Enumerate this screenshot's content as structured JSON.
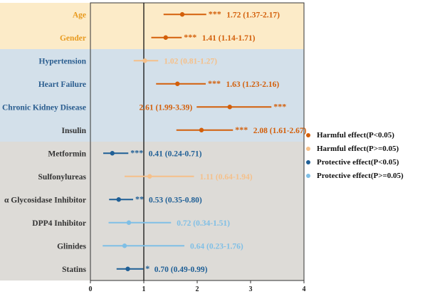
{
  "chart_data": {
    "type": "forest",
    "xlim": [
      0,
      4
    ],
    "x_ticks": [
      "0",
      "1",
      "2",
      "3",
      "4"
    ],
    "reference_line": 1,
    "bands": [
      {
        "rows": [
          0,
          1
        ],
        "color": "#fcebc8"
      },
      {
        "rows": [
          2,
          3,
          4,
          5
        ],
        "color": "#d3e0ea"
      },
      {
        "rows": [
          6,
          7,
          8,
          9,
          10,
          11
        ],
        "color": "#dddbd7"
      }
    ],
    "label_colors": {
      "Age": "#e89a1e",
      "Gender": "#e89a1e",
      "Hypertension": "#2a5d8f",
      "Heart Failure": "#2a5d8f",
      "Chronic Kidney Disease": "#2a5d8f",
      "Insulin": "#333333",
      "Metformin": "#333333",
      "Sulfonylureas": "#333333",
      "α Glycosidase Inhibitor": "#333333",
      "DPP4 Inhibitor": "#333333",
      "Glinides": "#333333",
      "Statins": "#333333"
    },
    "categories": [
      "Age",
      "Gender",
      "Hypertension",
      "Heart Failure",
      "Chronic Kidney Disease",
      "Insulin",
      "Metformin",
      "Sulfonylureas",
      "α Glycosidase Inhibitor",
      "DPP4 Inhibitor",
      "Glinides",
      "Statins"
    ],
    "rows": [
      {
        "label": "Age",
        "est": 1.72,
        "lo": 1.37,
        "hi": 2.17,
        "text": "1.72 (1.37-2.17)",
        "sig": "***",
        "group": "harmful_sig",
        "text_side": "right"
      },
      {
        "label": "Gender",
        "est": 1.41,
        "lo": 1.14,
        "hi": 1.71,
        "text": "1.41 (1.14-1.71)",
        "sig": "***",
        "group": "harmful_sig",
        "text_side": "right"
      },
      {
        "label": "Hypertension",
        "est": 1.02,
        "lo": 0.81,
        "hi": 1.27,
        "text": "1.02 (0.81-1.27)",
        "sig": "",
        "group": "harmful_ns",
        "text_side": "right"
      },
      {
        "label": "Heart Failure",
        "est": 1.63,
        "lo": 1.23,
        "hi": 2.16,
        "text": "1.63 (1.23-2.16)",
        "sig": "***",
        "group": "harmful_sig",
        "text_side": "right"
      },
      {
        "label": "Chronic Kidney Disease",
        "est": 2.61,
        "lo": 1.99,
        "hi": 3.39,
        "text": "2.61 (1.99-3.39)",
        "sig": "***",
        "group": "harmful_sig",
        "text_side": "left"
      },
      {
        "label": "Insulin",
        "est": 2.08,
        "lo": 1.61,
        "hi": 2.67,
        "text": "2.08 (1.61-2.67)",
        "sig": "***",
        "group": "harmful_sig",
        "text_side": "right"
      },
      {
        "label": "Metformin",
        "est": 0.41,
        "lo": 0.24,
        "hi": 0.71,
        "text": "0.41 (0.24-0.71)",
        "sig": "***",
        "group": "protective_sig",
        "text_side": "right"
      },
      {
        "label": "Sulfonylureas",
        "est": 1.11,
        "lo": 0.64,
        "hi": 1.94,
        "text": "1.11 (0.64-1.94)",
        "sig": "",
        "group": "harmful_ns",
        "text_side": "right"
      },
      {
        "label": "α Glycosidase Inhibitor",
        "est": 0.53,
        "lo": 0.35,
        "hi": 0.8,
        "text": "0.53 (0.35-0.80)",
        "sig": "**",
        "group": "protective_sig",
        "text_side": "right"
      },
      {
        "label": "DPP4 Inhibitor",
        "est": 0.72,
        "lo": 0.34,
        "hi": 1.51,
        "text": "0.72 (0.34-1.51)",
        "sig": "",
        "group": "protective_ns",
        "text_side": "right"
      },
      {
        "label": "Glinides",
        "est": 0.64,
        "lo": 0.23,
        "hi": 1.76,
        "text": "0.64 (0.23-1.76)",
        "sig": "",
        "group": "protective_ns",
        "text_side": "right"
      },
      {
        "label": "Statins",
        "est": 0.7,
        "lo": 0.49,
        "hi": 0.99,
        "text": "0.70 (0.49-0.99)",
        "sig": "*",
        "group": "protective_sig",
        "text_side": "right"
      }
    ],
    "legend": [
      {
        "key": "harmful_sig",
        "label": "Harmful effect(P<0.05)",
        "color": "#d35f0a"
      },
      {
        "key": "harmful_ns",
        "label": "Harmful effect(P>=0.05)",
        "color": "#f5c08a"
      },
      {
        "key": "protective_sig",
        "label": "Protective effect(P<0.05)",
        "color": "#1f5f96"
      },
      {
        "key": "protective_ns",
        "label": "Protective effect(P>=0.05)",
        "color": "#7fbfe6"
      }
    ]
  }
}
